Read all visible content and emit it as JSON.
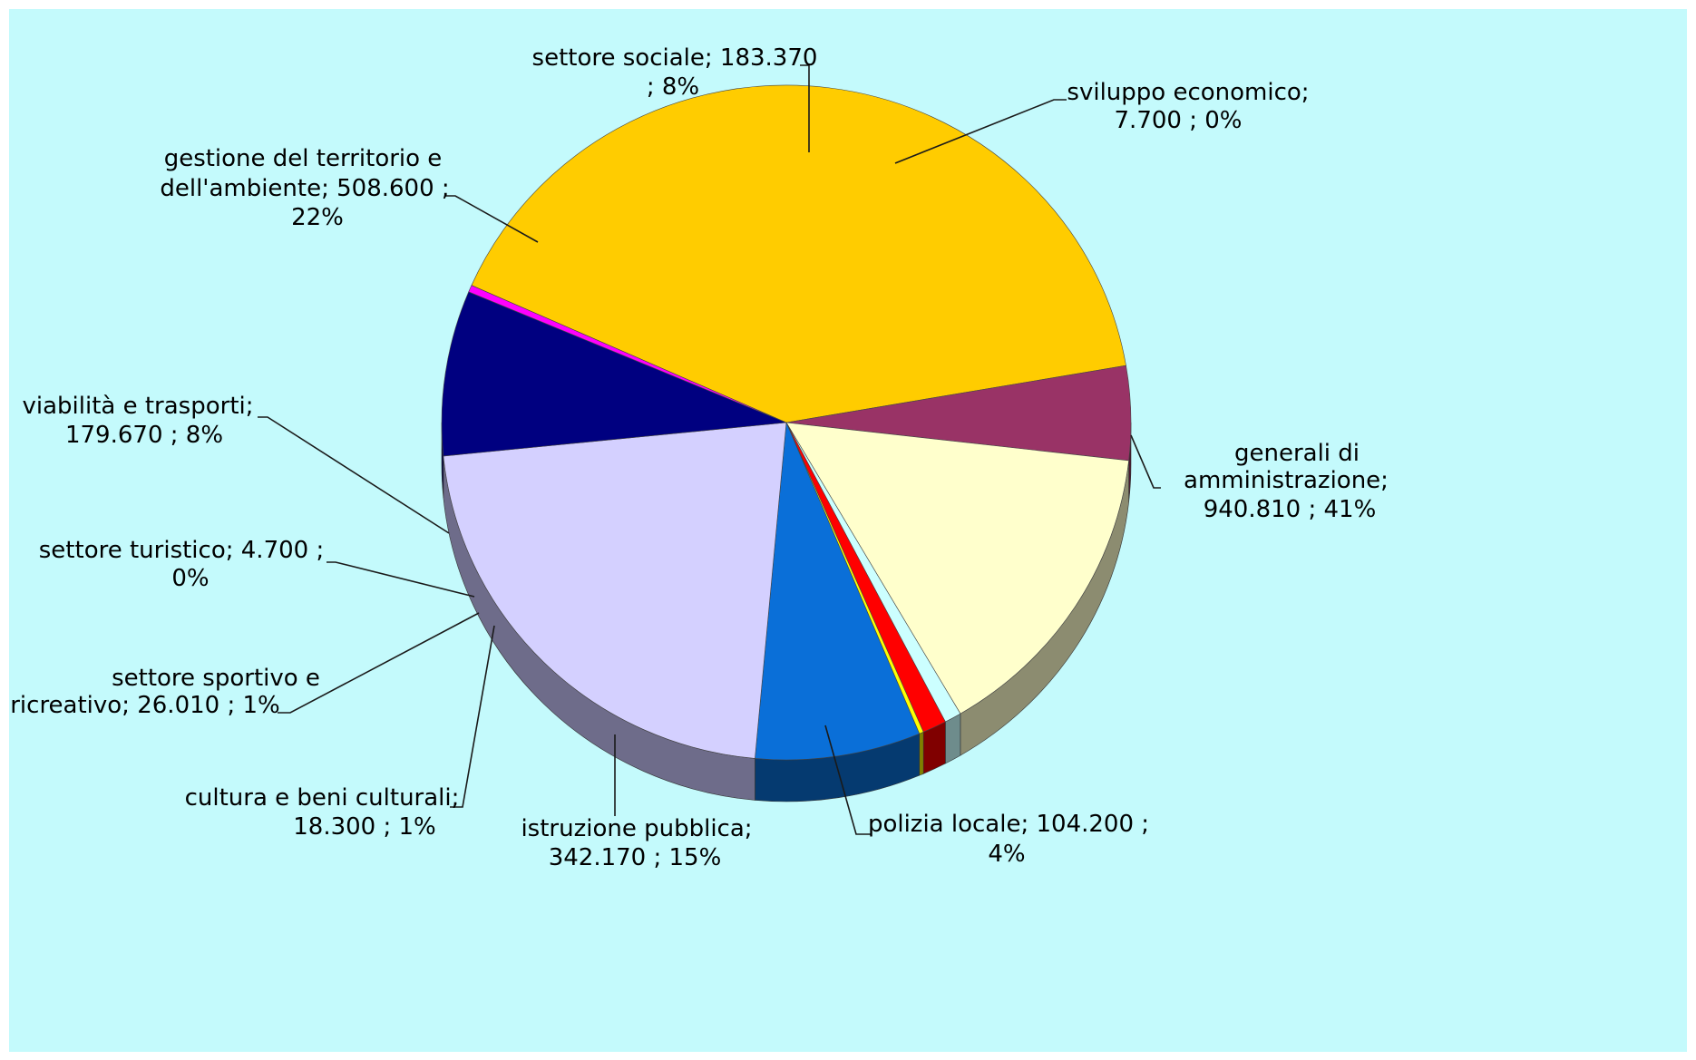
{
  "chart_data": {
    "type": "pie",
    "title": "",
    "units": "",
    "slices": [
      {
        "label": "generali di amministrazione",
        "value": 940810,
        "value_text": "940.810",
        "percent": 41,
        "color": "#ffcc00",
        "side_color": "#8a6600"
      },
      {
        "label": "polizia locale",
        "value": 104200,
        "value_text": "104.200",
        "percent": 4,
        "color": "#993366",
        "side_color": "#4a1830"
      },
      {
        "label": "istruzione pubblica",
        "value": 342170,
        "value_text": "342.170",
        "percent": 15,
        "color": "#ffffcc",
        "side_color": "#8c8c70"
      },
      {
        "label": "cultura e beni culturali",
        "value": 18300,
        "value_text": "18.300",
        "percent": 1,
        "color": "#ccffff",
        "side_color": "#6e8c8c"
      },
      {
        "label": "settore sportivo e ricreativo",
        "value": 26010,
        "value_text": "26.010",
        "percent": 1,
        "color": "#ff0000",
        "side_color": "#800000"
      },
      {
        "label": "settore turistico",
        "value": 4700,
        "value_text": "4.700",
        "percent": 0,
        "color": "#ffff00",
        "side_color": "#808000"
      },
      {
        "label": "viabilità e trasporti",
        "value": 179670,
        "value_text": "179.670",
        "percent": 8,
        "color": "#0a6fd8",
        "side_color": "#053a70"
      },
      {
        "label": "gestione del territorio e dell'ambiente",
        "value": 508600,
        "value_text": "508.600",
        "percent": 22,
        "color": "#d4d0ff",
        "side_color": "#6e6c8a"
      },
      {
        "label": "settore sociale",
        "value": 183370,
        "value_text": "183.370",
        "percent": 8,
        "color": "#000080",
        "side_color": "#000040"
      },
      {
        "label": "sviluppo economico",
        "value": 7700,
        "value_text": "7.700",
        "percent": 0,
        "color": "#ff00ff",
        "side_color": "#800080"
      }
    ],
    "data_labels": [
      [
        "generali di",
        "amministrazione;",
        "940.810 ; 41%"
      ],
      [
        "polizia locale;  104.200 ;",
        "4%"
      ],
      [
        "istruzione pubblica;",
        "342.170 ; 15%"
      ],
      [
        "cultura e beni culturali;",
        "18.300 ; 1%"
      ],
      [
        "settore sportivo e",
        "ricreativo;  26.010 ; 1%"
      ],
      [
        "settore turistico;  4.700 ;",
        "0%"
      ],
      [
        "viabilità e trasporti;",
        "179.670 ; 8%"
      ],
      [
        "gestione del territorio e",
        "dell'ambiente;  508.600 ;",
        "22%"
      ],
      [
        "settore sociale;  183.370",
        "; 8%"
      ],
      [
        "sviluppo economico;",
        "7.700 ; 0%"
      ]
    ],
    "legend": "none",
    "style": "3d-pie"
  }
}
